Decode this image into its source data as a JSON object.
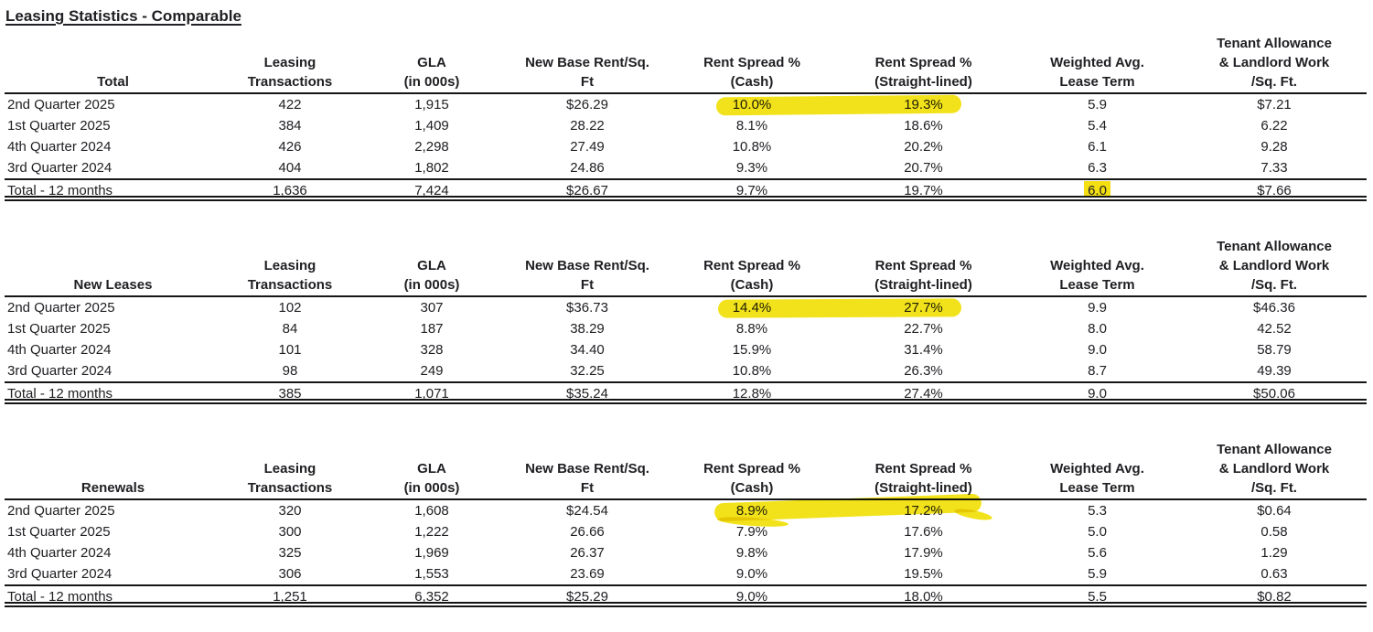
{
  "title": "Leasing Statistics - Comparable",
  "colors": {
    "highlighter_yellow": "#F2E10E",
    "text": "#202024",
    "rule_lines": "#151515"
  },
  "columns": [
    {
      "text": "Leasing\nTransactions"
    },
    {
      "text": "GLA\n(in 000s)"
    },
    {
      "text": "New Base Rent/Sq.\nFt"
    },
    {
      "text": "Rent Spread %\n(Cash)"
    },
    {
      "text": "Rent Spread %\n(Straight-lined)"
    },
    {
      "text": "Weighted Avg.\nLease Term"
    },
    {
      "text": "Tenant Allowance\n& Landlord Work\n/Sq. Ft."
    }
  ],
  "tables": [
    {
      "label": "Total",
      "rows": [
        [
          "2nd Quarter 2025",
          "422",
          "1,915",
          "$26.29",
          "10.0%",
          "19.3%",
          "5.9",
          "$7.21"
        ],
        [
          "1st Quarter 2025",
          "384",
          "1,409",
          "28.22",
          "8.1%",
          "18.6%",
          "5.4",
          "6.22"
        ],
        [
          "4th Quarter 2024",
          "426",
          "2,298",
          "27.49",
          "10.8%",
          "20.2%",
          "6.1",
          "9.28"
        ],
        [
          "3rd Quarter 2024",
          "404",
          "1,802",
          "24.86",
          "9.3%",
          "20.7%",
          "6.3",
          "7.33"
        ]
      ],
      "total": [
        "Total - 12 months",
        "1,636",
        "7,424",
        "$26.67",
        "9.7%",
        "19.7%",
        "6.0",
        "$7.66"
      ],
      "highlights": [
        {
          "row": "2nd Quarter 2025",
          "values": [
            "10.0%",
            "19.3%"
          ],
          "type": "marker-stroke"
        },
        {
          "row": "Total - 12 months",
          "values": [
            "6.0"
          ],
          "type": "cell-fill"
        }
      ]
    },
    {
      "label": "New Leases",
      "rows": [
        [
          "2nd Quarter 2025",
          "102",
          "307",
          "$36.73",
          "14.4%",
          "27.7%",
          "9.9",
          "$46.36"
        ],
        [
          "1st Quarter 2025",
          "84",
          "187",
          "38.29",
          "8.8%",
          "22.7%",
          "8.0",
          "42.52"
        ],
        [
          "4th Quarter 2024",
          "101",
          "328",
          "34.40",
          "15.9%",
          "31.4%",
          "9.0",
          "58.79"
        ],
        [
          "3rd Quarter 2024",
          "98",
          "249",
          "32.25",
          "10.8%",
          "26.3%",
          "8.7",
          "49.39"
        ]
      ],
      "total": [
        "Total - 12 months",
        "385",
        "1,071",
        "$35.24",
        "12.8%",
        "27.4%",
        "9.0",
        "$50.06"
      ],
      "highlights": [
        {
          "row": "2nd Quarter 2025",
          "values": [
            "14.4%",
            "27.7%"
          ],
          "type": "marker-stroke"
        }
      ]
    },
    {
      "label": "Renewals",
      "rows": [
        [
          "2nd Quarter 2025",
          "320",
          "1,608",
          "$24.54",
          "8.9%",
          "17.2%",
          "5.3",
          "$0.64"
        ],
        [
          "1st Quarter 2025",
          "300",
          "1,222",
          "26.66",
          "7.9%",
          "17.6%",
          "5.0",
          "0.58"
        ],
        [
          "4th Quarter 2024",
          "325",
          "1,969",
          "26.37",
          "9.8%",
          "17.9%",
          "5.6",
          "1.29"
        ],
        [
          "3rd Quarter 2024",
          "306",
          "1,553",
          "23.69",
          "9.0%",
          "19.5%",
          "5.9",
          "0.63"
        ]
      ],
      "total": [
        "Total - 12 months",
        "1,251",
        "6,352",
        "$25.29",
        "9.0%",
        "18.0%",
        "5.5",
        "$0.82"
      ],
      "highlights": [
        {
          "row": "2nd Quarter 2025",
          "values": [
            "8.9%",
            "17.2%"
          ],
          "type": "marker-stroke"
        }
      ]
    }
  ]
}
